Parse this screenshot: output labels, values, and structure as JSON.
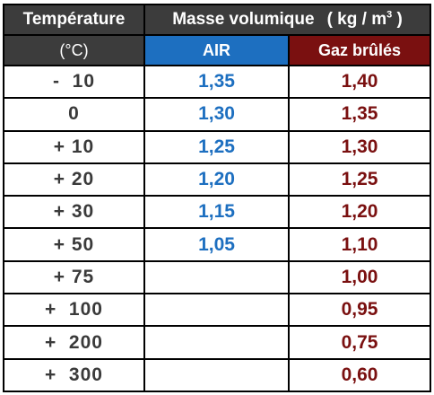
{
  "header": {
    "temperature_label": "Température",
    "temperature_unit": "(°C)",
    "masse_label": "Masse volumique",
    "masse_unit_prefix": "( kg / m",
    "masse_unit_exp": "3",
    "masse_unit_suffix": " )",
    "air_label": "AIR",
    "gaz_label": "Gaz brûlés"
  },
  "colors": {
    "header_dark": "#3c3c3c",
    "air_accent": "#1d6fc0",
    "gaz_accent": "#7a1010",
    "temp_text": "#3a3a3a"
  },
  "rows": [
    {
      "temp": "-  10",
      "air": "1,35",
      "gaz": "1,40"
    },
    {
      "temp": "0",
      "air": "1,30",
      "gaz": "1,35"
    },
    {
      "temp": "+ 10",
      "air": "1,25",
      "gaz": "1,30"
    },
    {
      "temp": "+ 20",
      "air": "1,20",
      "gaz": "1,25"
    },
    {
      "temp": "+ 30",
      "air": "1,15",
      "gaz": "1,20"
    },
    {
      "temp": "+ 50",
      "air": "1,05",
      "gaz": "1,10"
    },
    {
      "temp": "+ 75",
      "air": "",
      "gaz": "1,00"
    },
    {
      "temp": "+  100",
      "air": "",
      "gaz": "0,95"
    },
    {
      "temp": "+  200",
      "air": "",
      "gaz": "0,75"
    },
    {
      "temp": "+  300",
      "air": "",
      "gaz": "0,60"
    }
  ]
}
